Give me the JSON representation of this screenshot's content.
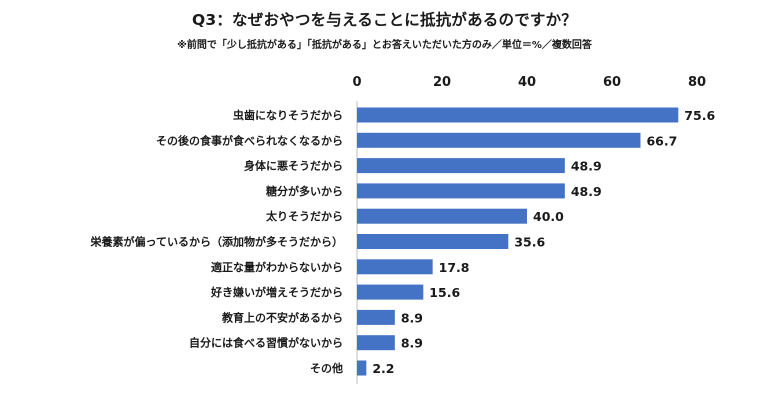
{
  "chart_data": {
    "type": "bar",
    "orientation": "horizontal",
    "title": "Q3：なぜおやつを与えることに抵抗があるのですか？",
    "subtitle": "※前問で「少し抵抗がある」「抵抗がある」とお答えいただいた方のみ／単位＝%／複数回答",
    "categories": [
      "虫歯になりそうだから",
      "その後の食事が食べられなくなるから",
      "身体に悪そうだから",
      "糖分が多いから",
      "太りそうだから",
      "栄養素が偏っているから（添加物が多そうだから）",
      "適正な量がわからないから",
      "好き嫌いが増えそうだから",
      "教育上の不安があるから",
      "自分には食べる習慣がないから",
      "その他"
    ],
    "values": [
      75.6,
      66.7,
      48.9,
      48.9,
      40.0,
      35.6,
      17.8,
      15.6,
      8.9,
      8.9,
      2.2
    ],
    "value_labels": [
      "75.6",
      "66.7",
      "48.9",
      "48.9",
      "40.0",
      "35.6",
      "17.8",
      "15.6",
      "8.9",
      "8.9",
      "2.2"
    ],
    "xlim": [
      0,
      80
    ],
    "xticks": [
      "0",
      "20",
      "40",
      "60",
      "80"
    ],
    "axis_position": "top",
    "grid": false,
    "bar_color": "#4472c4"
  }
}
